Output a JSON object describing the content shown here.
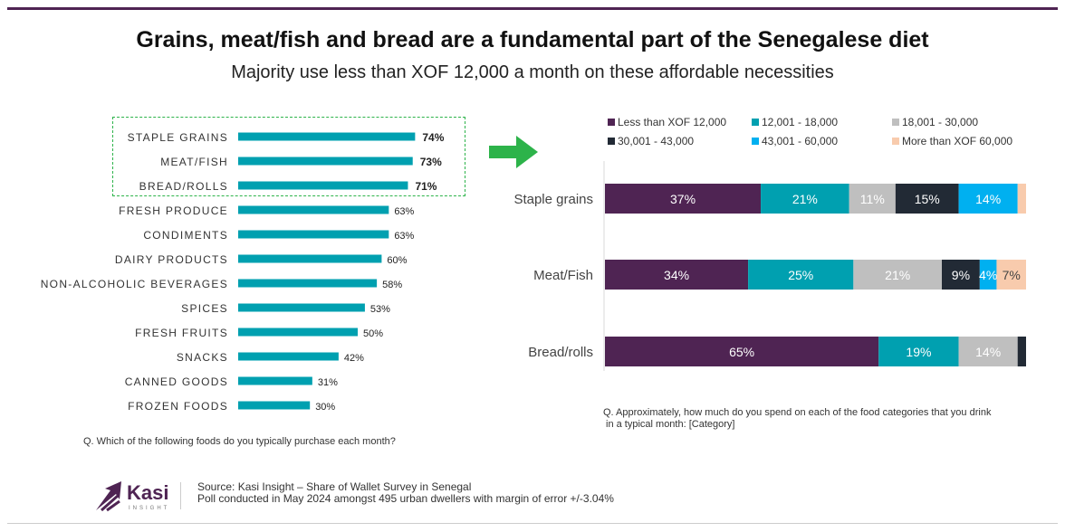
{
  "title": "Grains, meat/fish and bread are a fundamental part of the Senegalese diet",
  "subtitle": "Majority use less than XOF 12,000 a month on these affordable necessities",
  "left_question": "Q. Which of the following foods do you typically purchase each month?",
  "right_question_line1": "Q. Approximately, how much do you spend on each of the food categories that you drink",
  "right_question_line2": "in a typical month: [Category]",
  "source_line1": "Source: Kasi Insight – Share of Wallet Survey in Senegal",
  "source_line2": "Poll conducted in May 2024 amongst 495 urban dwellers with margin of error +/-3.04%",
  "logo": {
    "name": "Kasi",
    "sub": "INSIGHT"
  },
  "colors": {
    "teal": "#00a0b0",
    "brand": "#4f2453",
    "highlight": "#2db34a"
  },
  "chart_data": [
    {
      "type": "bar",
      "orientation": "horizontal",
      "categories": [
        "STAPLE GRAINS",
        "MEAT/FISH",
        "BREAD/ROLLS",
        "FRESH PRODUCE",
        "CONDIMENTS",
        "DAIRY PRODUCTS",
        "NON-ALCOHOLIC BEVERAGES",
        "SPICES",
        "FRESH FRUITS",
        "SNACKS",
        "CANNED GOODS",
        "FROZEN FOODS"
      ],
      "values": [
        74,
        73,
        71,
        63,
        63,
        60,
        58,
        53,
        50,
        42,
        31,
        30
      ],
      "labels": [
        "74%",
        "73%",
        "71%",
        "63%",
        "63%",
        "60%",
        "58%",
        "53%",
        "50%",
        "42%",
        "31%",
        "30%"
      ],
      "highlighted": [
        0,
        1,
        2
      ],
      "color": "#00a0b0",
      "xlim": [
        0,
        100
      ]
    },
    {
      "type": "bar",
      "orientation": "horizontal",
      "stacked": true,
      "legend_position": "top",
      "categories": [
        "Staple grains",
        "Meat/Fish",
        "Bread/rolls"
      ],
      "series": [
        {
          "name": "Less than XOF 12,000",
          "color": "#4f2453",
          "values": [
            37,
            34,
            65
          ],
          "labels": [
            "37%",
            "34%",
            "65%"
          ]
        },
        {
          "name": "12,001 - 18,000",
          "color": "#00a0b0",
          "values": [
            21,
            25,
            19
          ],
          "labels": [
            "21%",
            "25%",
            "19%"
          ]
        },
        {
          "name": "18,001 - 30,000",
          "color": "#bfbfbf",
          "values": [
            11,
            21,
            14
          ],
          "labels": [
            "11%",
            "21%",
            "14%"
          ]
        },
        {
          "name": "30,001 - 43,000",
          "color": "#222a35",
          "values": [
            15,
            9,
            2
          ],
          "labels": [
            "15%",
            "9%",
            ""
          ]
        },
        {
          "name": "43,001 - 60,000",
          "color": "#00b0f0",
          "values": [
            14,
            4,
            0
          ],
          "labels": [
            "14%",
            "4%",
            ""
          ]
        },
        {
          "name": "More than XOF 60,000",
          "color": "#f8cbad",
          "values": [
            2,
            7,
            0
          ],
          "labels": [
            "",
            "7%",
            ""
          ]
        }
      ],
      "xlim": [
        0,
        100
      ]
    }
  ]
}
